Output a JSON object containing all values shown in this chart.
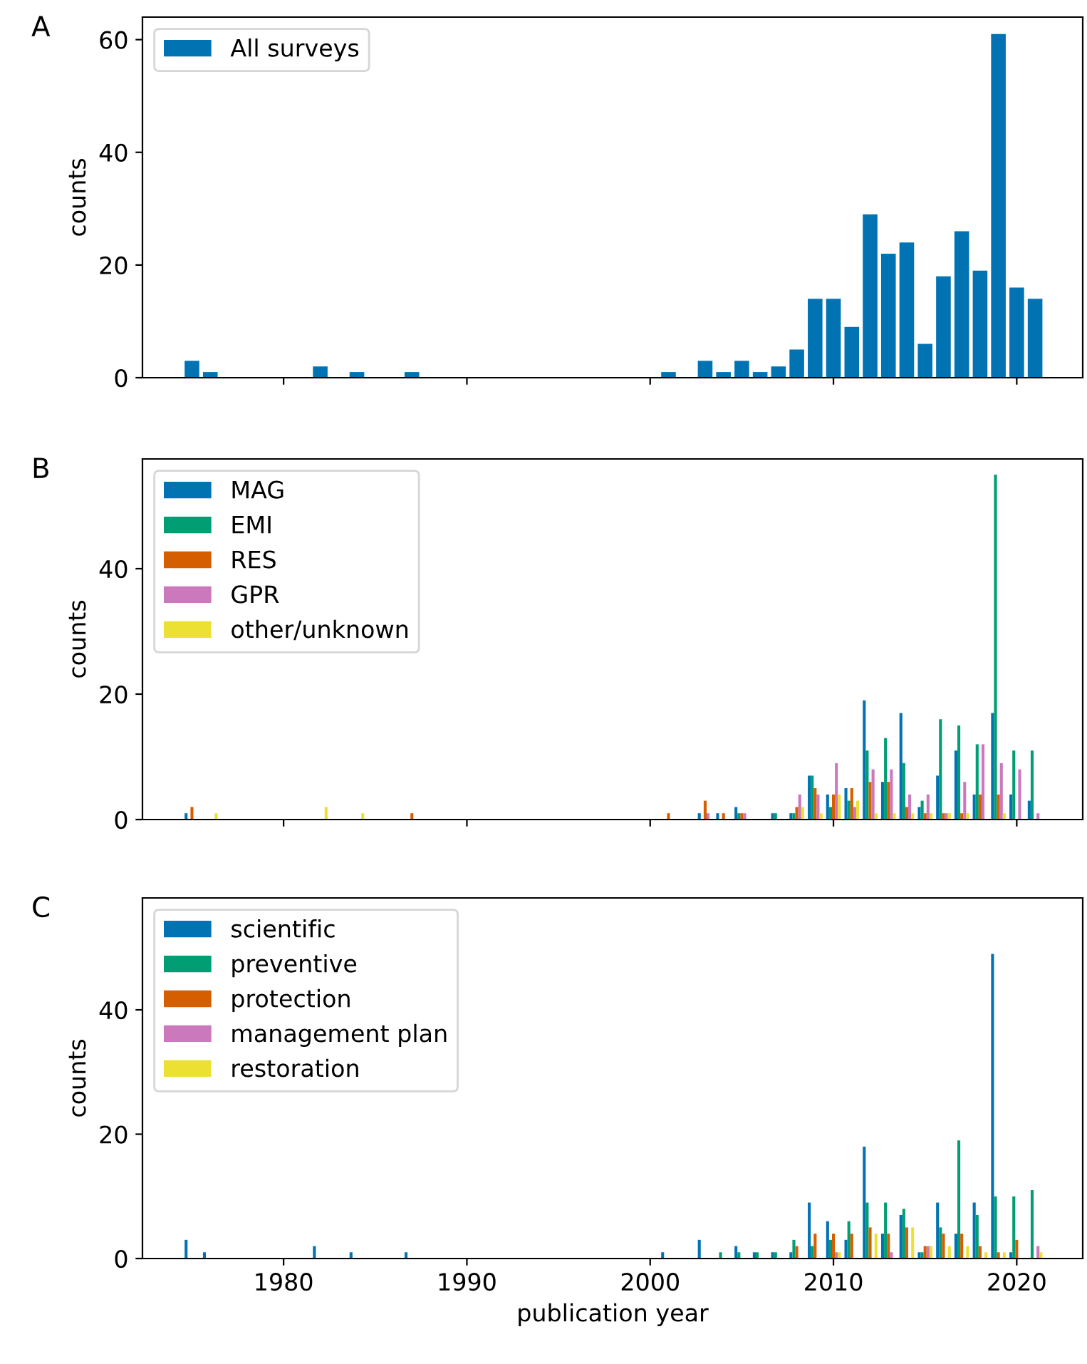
{
  "chart_data": [
    {
      "type": "bar",
      "title": "A",
      "ylabel": "counts",
      "x": [
        1975,
        1976,
        1982,
        1984,
        1987,
        2001,
        2003,
        2004,
        2005,
        2006,
        2007,
        2008,
        2009,
        2010,
        2011,
        2012,
        2013,
        2014,
        2015,
        2016,
        2017,
        2018,
        2019,
        2020,
        2021
      ],
      "series": [
        {
          "name": "All surveys",
          "color": "#0173b2",
          "values": [
            3,
            1,
            2,
            1,
            1,
            1,
            3,
            1,
            3,
            1,
            2,
            5,
            14,
            14,
            9,
            29,
            22,
            24,
            6,
            18,
            26,
            19,
            61,
            16,
            14
          ]
        }
      ],
      "xlim": [
        1972.3,
        2023.6
      ],
      "xticks": [
        1980,
        1990,
        2000,
        2010,
        2020
      ],
      "ylim": [
        0,
        64
      ],
      "yticks": [
        0,
        20,
        40,
        60
      ],
      "legend": "top left",
      "tick_labels": "y"
    },
    {
      "type": "bar",
      "title": "B",
      "ylabel": "counts",
      "x": [
        1975,
        1976,
        1982,
        1984,
        1987,
        2001,
        2003,
        2004,
        2005,
        2006,
        2007,
        2008,
        2009,
        2010,
        2011,
        2012,
        2013,
        2014,
        2015,
        2016,
        2017,
        2018,
        2019,
        2020,
        2021
      ],
      "series": [
        {
          "name": "MAG",
          "color": "#0173b2",
          "values": [
            1,
            0,
            0,
            0,
            0,
            0,
            1,
            1,
            2,
            0,
            1,
            1,
            7,
            4,
            5,
            19,
            6,
            17,
            2,
            7,
            11,
            4,
            17,
            4,
            3
          ]
        },
        {
          "name": "EMI",
          "color": "#029e73",
          "values": [
            0,
            0,
            0,
            0,
            0,
            0,
            0,
            0,
            1,
            0,
            1,
            1,
            7,
            2,
            3,
            11,
            13,
            9,
            3,
            16,
            15,
            12,
            55,
            11,
            11
          ]
        },
        {
          "name": "RES",
          "color": "#d55e00",
          "values": [
            2,
            0,
            0,
            0,
            1,
            1,
            3,
            1,
            1,
            0,
            0,
            2,
            5,
            4,
            5,
            6,
            6,
            2,
            1,
            1,
            1,
            4,
            4,
            0,
            0
          ]
        },
        {
          "name": "GPR",
          "color": "#cc78bc",
          "values": [
            0,
            0,
            0,
            0,
            0,
            0,
            1,
            0,
            1,
            0,
            0,
            4,
            4,
            9,
            2,
            8,
            8,
            4,
            4,
            1,
            6,
            12,
            9,
            8,
            1
          ]
        },
        {
          "name": "other/unknown",
          "color": "#ece133",
          "values": [
            0,
            1,
            2,
            1,
            0,
            0,
            0,
            0,
            0,
            0,
            0,
            2,
            1,
            4,
            3,
            1,
            1,
            1,
            1,
            1,
            1,
            0,
            1,
            0,
            0
          ]
        }
      ],
      "xlim": [
        1972.3,
        2023.6
      ],
      "xticks": [
        1980,
        1990,
        2000,
        2010,
        2020
      ],
      "ylim": [
        0,
        57.5
      ],
      "yticks": [
        0,
        20,
        40
      ],
      "legend": "top left",
      "tick_labels": "y"
    },
    {
      "type": "bar",
      "title": "C",
      "ylabel": "counts",
      "xlabel": "publication year",
      "x": [
        1975,
        1976,
        1982,
        1984,
        1987,
        2001,
        2003,
        2004,
        2005,
        2006,
        2007,
        2008,
        2009,
        2010,
        2011,
        2012,
        2013,
        2014,
        2015,
        2016,
        2017,
        2018,
        2019,
        2020,
        2021
      ],
      "series": [
        {
          "name": "scientific",
          "color": "#0173b2",
          "values": [
            3,
            1,
            2,
            1,
            1,
            1,
            3,
            0,
            2,
            1,
            1,
            1,
            9,
            6,
            3,
            18,
            4,
            7,
            1,
            9,
            4,
            9,
            49,
            1,
            0
          ]
        },
        {
          "name": "preventive",
          "color": "#029e73",
          "values": [
            0,
            0,
            0,
            0,
            0,
            0,
            0,
            1,
            1,
            1,
            1,
            3,
            2,
            3,
            6,
            9,
            9,
            8,
            1,
            5,
            19,
            7,
            10,
            10,
            11
          ]
        },
        {
          "name": "protection",
          "color": "#d55e00",
          "values": [
            0,
            0,
            0,
            0,
            0,
            0,
            0,
            0,
            0,
            0,
            0,
            2,
            4,
            4,
            4,
            5,
            4,
            5,
            2,
            4,
            4,
            2,
            1,
            3,
            0
          ]
        },
        {
          "name": "management plan",
          "color": "#cc78bc",
          "values": [
            0,
            0,
            0,
            0,
            0,
            0,
            0,
            0,
            0,
            0,
            0,
            0,
            0,
            1,
            0,
            0,
            1,
            0,
            2,
            0,
            0,
            0,
            0,
            0,
            2
          ]
        },
        {
          "name": "restoration",
          "color": "#ece133",
          "values": [
            0,
            0,
            0,
            0,
            0,
            0,
            0,
            0,
            0,
            0,
            0,
            0,
            0,
            1,
            0,
            4,
            0,
            5,
            2,
            2,
            2,
            1,
            1,
            0,
            1
          ]
        }
      ],
      "xlim": [
        1972.3,
        2023.6
      ],
      "xticks": [
        1980,
        1990,
        2000,
        2010,
        2020
      ],
      "ylim": [
        0,
        58
      ],
      "yticks": [
        0,
        20,
        40
      ],
      "legend": "top left"
    }
  ]
}
